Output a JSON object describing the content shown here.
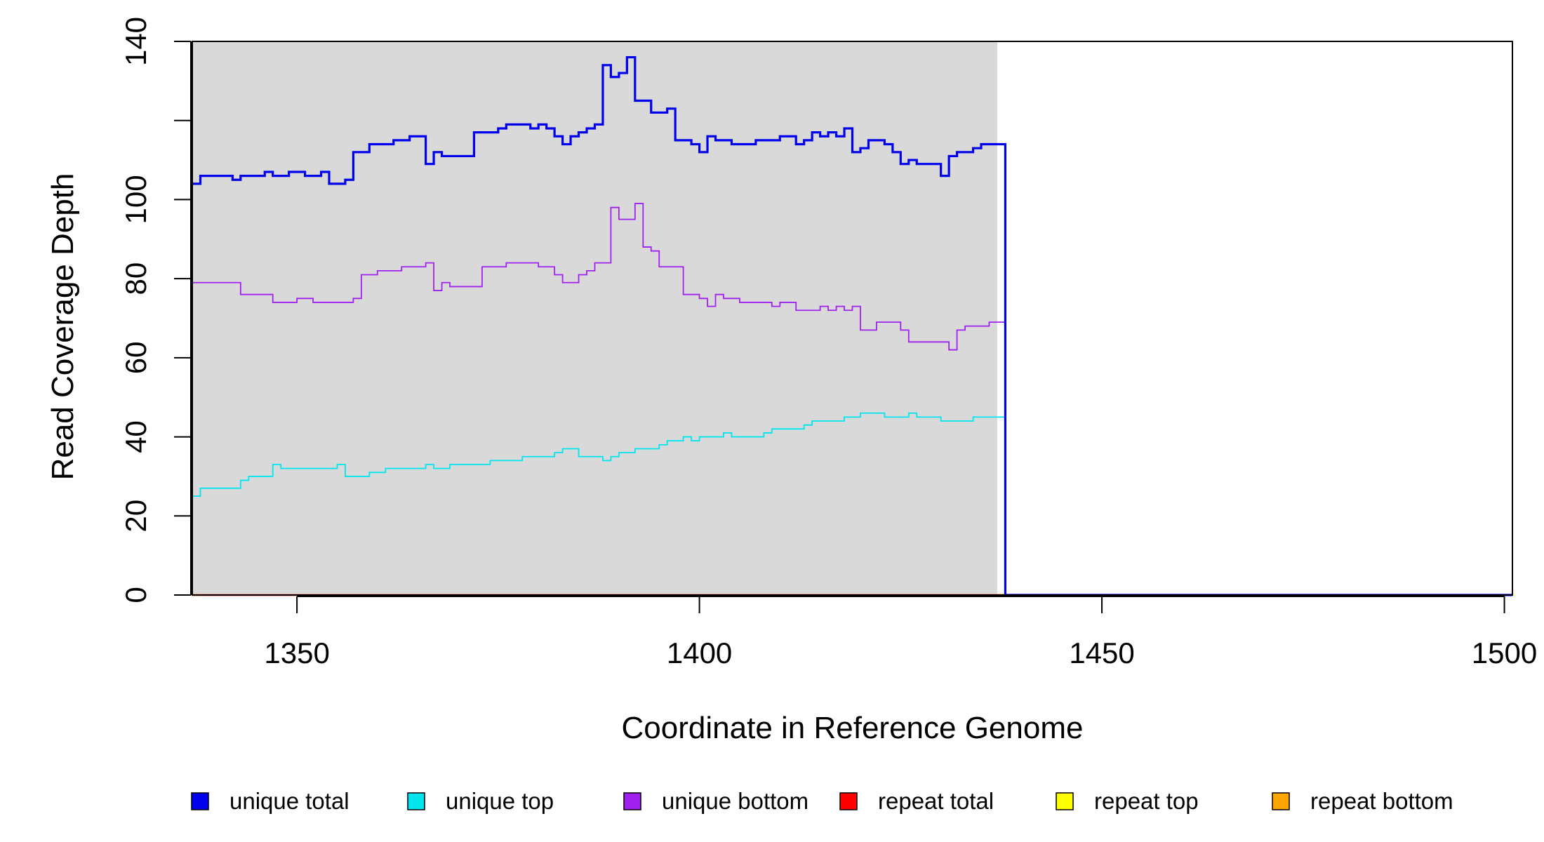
{
  "chart_data": {
    "type": "line",
    "step": true,
    "xlabel": "Coordinate in Reference Genome",
    "ylabel": "Read Coverage Depth",
    "xlim": [
      1337,
      1501
    ],
    "ylim": [
      0,
      140
    ],
    "xticks": [
      1350,
      1400,
      1450,
      1500
    ],
    "xtick_labels": [
      "1350",
      "1400",
      "1450",
      "1500"
    ],
    "yticks": [
      0,
      20,
      40,
      60,
      80,
      100,
      120,
      140
    ],
    "ytick_labels": [
      "0",
      "20",
      "40",
      "60",
      "80",
      "100",
      "",
      "140"
    ],
    "shaded_region": {
      "x": [
        1337,
        1437
      ],
      "color": "#d9d9d9"
    },
    "series": [
      {
        "name": "unique total",
        "color": "#0000ee",
        "x": [
          1337,
          1338,
          1339,
          1340,
          1341,
          1342,
          1343,
          1344,
          1345,
          1346,
          1347,
          1348,
          1349,
          1350,
          1351,
          1352,
          1353,
          1354,
          1355,
          1356,
          1357,
          1358,
          1359,
          1360,
          1361,
          1362,
          1363,
          1364,
          1365,
          1366,
          1367,
          1368,
          1369,
          1370,
          1371,
          1372,
          1373,
          1374,
          1375,
          1376,
          1377,
          1378,
          1379,
          1380,
          1381,
          1382,
          1383,
          1384,
          1385,
          1386,
          1387,
          1388,
          1389,
          1390,
          1391,
          1392,
          1393,
          1394,
          1395,
          1396,
          1397,
          1398,
          1399,
          1400,
          1401,
          1402,
          1403,
          1404,
          1405,
          1406,
          1407,
          1408,
          1409,
          1410,
          1411,
          1412,
          1413,
          1414,
          1415,
          1416,
          1417,
          1418,
          1419,
          1420,
          1421,
          1422,
          1423,
          1424,
          1425,
          1426,
          1427,
          1428,
          1429,
          1430,
          1431,
          1432,
          1433,
          1434,
          1435,
          1436,
          1437,
          1438,
          1460,
          1480,
          1501
        ],
        "values": [
          104,
          106,
          106,
          106,
          106,
          105,
          106,
          106,
          106,
          107,
          106,
          106,
          107,
          107,
          106,
          106,
          107,
          104,
          104,
          105,
          112,
          112,
          114,
          114,
          114,
          115,
          115,
          116,
          116,
          109,
          112,
          111,
          111,
          111,
          111,
          117,
          117,
          117,
          118,
          119,
          119,
          119,
          118,
          119,
          118,
          116,
          114,
          116,
          117,
          118,
          119,
          134,
          131,
          132,
          136,
          125,
          125,
          122,
          122,
          123,
          115,
          115,
          114,
          112,
          116,
          115,
          115,
          114,
          114,
          114,
          115,
          115,
          115,
          116,
          116,
          114,
          115,
          117,
          116,
          117,
          116,
          118,
          112,
          113,
          115,
          115,
          114,
          112,
          109,
          110,
          109,
          109,
          109,
          106,
          111,
          112,
          112,
          113,
          114,
          114,
          114,
          0,
          0,
          0,
          0
        ]
      },
      {
        "name": "unique top",
        "color": "#00e5ee",
        "x": [
          1337,
          1338,
          1339,
          1340,
          1341,
          1342,
          1343,
          1344,
          1345,
          1346,
          1347,
          1348,
          1349,
          1350,
          1351,
          1352,
          1353,
          1354,
          1355,
          1356,
          1357,
          1358,
          1359,
          1360,
          1361,
          1362,
          1363,
          1364,
          1365,
          1366,
          1367,
          1368,
          1369,
          1370,
          1371,
          1372,
          1373,
          1374,
          1375,
          1376,
          1377,
          1378,
          1379,
          1380,
          1381,
          1382,
          1383,
          1384,
          1385,
          1386,
          1387,
          1388,
          1389,
          1390,
          1391,
          1392,
          1393,
          1394,
          1395,
          1396,
          1397,
          1398,
          1399,
          1400,
          1401,
          1402,
          1403,
          1404,
          1405,
          1406,
          1407,
          1408,
          1409,
          1410,
          1411,
          1412,
          1413,
          1414,
          1415,
          1416,
          1417,
          1418,
          1419,
          1420,
          1421,
          1422,
          1423,
          1424,
          1425,
          1426,
          1427,
          1428,
          1429,
          1430,
          1431,
          1432,
          1433,
          1434,
          1435,
          1436,
          1437,
          1438,
          1460,
          1480,
          1501
        ],
        "values": [
          25,
          27,
          27,
          27,
          27,
          27,
          29,
          30,
          30,
          30,
          33,
          32,
          32,
          32,
          32,
          32,
          32,
          32,
          33,
          30,
          30,
          30,
          31,
          31,
          32,
          32,
          32,
          32,
          32,
          33,
          32,
          32,
          33,
          33,
          33,
          33,
          33,
          34,
          34,
          34,
          34,
          35,
          35,
          35,
          35,
          36,
          37,
          37,
          35,
          35,
          35,
          34,
          35,
          36,
          36,
          37,
          37,
          37,
          38,
          39,
          39,
          40,
          39,
          40,
          40,
          40,
          41,
          40,
          40,
          40,
          40,
          41,
          42,
          42,
          42,
          42,
          43,
          44,
          44,
          44,
          44,
          45,
          45,
          46,
          46,
          46,
          45,
          45,
          45,
          46,
          45,
          45,
          45,
          44,
          44,
          44,
          44,
          45,
          45,
          45,
          45,
          0,
          0,
          0,
          0
        ]
      },
      {
        "name": "unique bottom",
        "color": "#a020f0",
        "x": [
          1337,
          1338,
          1339,
          1340,
          1341,
          1342,
          1343,
          1344,
          1345,
          1346,
          1347,
          1348,
          1349,
          1350,
          1351,
          1352,
          1353,
          1354,
          1355,
          1356,
          1357,
          1358,
          1359,
          1360,
          1361,
          1362,
          1363,
          1364,
          1365,
          1366,
          1367,
          1368,
          1369,
          1370,
          1371,
          1372,
          1373,
          1374,
          1375,
          1376,
          1377,
          1378,
          1379,
          1380,
          1381,
          1382,
          1383,
          1384,
          1385,
          1386,
          1387,
          1388,
          1389,
          1390,
          1391,
          1392,
          1393,
          1394,
          1395,
          1396,
          1397,
          1398,
          1399,
          1400,
          1401,
          1402,
          1403,
          1404,
          1405,
          1406,
          1407,
          1408,
          1409,
          1410,
          1411,
          1412,
          1413,
          1414,
          1415,
          1416,
          1417,
          1418,
          1419,
          1420,
          1421,
          1422,
          1423,
          1424,
          1425,
          1426,
          1427,
          1428,
          1429,
          1430,
          1431,
          1432,
          1433,
          1434,
          1435,
          1436,
          1437,
          1438,
          1460,
          1480,
          1501
        ],
        "values": [
          79,
          79,
          79,
          79,
          79,
          79,
          76,
          76,
          76,
          76,
          74,
          74,
          74,
          75,
          75,
          74,
          74,
          74,
          74,
          74,
          75,
          81,
          81,
          82,
          82,
          82,
          83,
          83,
          83,
          84,
          77,
          79,
          78,
          78,
          78,
          78,
          83,
          83,
          83,
          84,
          84,
          84,
          84,
          83,
          83,
          81,
          79,
          79,
          81,
          82,
          84,
          84,
          98,
          95,
          95,
          99,
          88,
          87,
          83,
          83,
          83,
          76,
          76,
          75,
          73,
          76,
          75,
          75,
          74,
          74,
          74,
          74,
          73,
          74,
          74,
          72,
          72,
          72,
          73,
          72,
          73,
          72,
          73,
          67,
          67,
          69,
          69,
          69,
          67,
          64,
          64,
          64,
          64,
          64,
          62,
          67,
          68,
          68,
          68,
          69,
          69,
          0,
          0,
          0,
          0
        ]
      },
      {
        "name": "repeat total",
        "color": "#ff0000",
        "x": [
          1337,
          1501
        ],
        "values": [
          0,
          0
        ]
      },
      {
        "name": "repeat top",
        "color": "#ffff00",
        "x": [
          1337,
          1501
        ],
        "values": [
          0,
          0
        ]
      },
      {
        "name": "repeat bottom",
        "color": "#ffa500",
        "x": [
          1337,
          1501
        ],
        "values": [
          0,
          0
        ]
      }
    ],
    "legend_position": "bottom"
  }
}
